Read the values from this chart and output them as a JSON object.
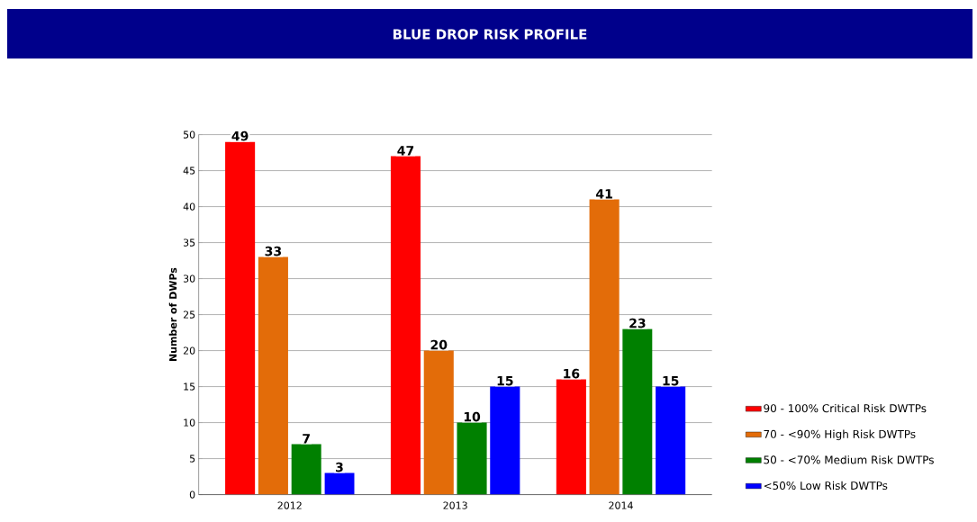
{
  "chart_data": {
    "type": "bar",
    "title": "BLUE DROP RISK PROFILE",
    "ylabel": "Number of DWPs",
    "categories": [
      "2012",
      "2013",
      "2014"
    ],
    "series": [
      {
        "name": "90 - 100% Critical Risk DWTPs",
        "color": "#ff0000",
        "values": [
          49,
          47,
          16
        ]
      },
      {
        "name": "70 - <90% High Risk DWTPs",
        "color": "#e36c09",
        "values": [
          33,
          20,
          41
        ]
      },
      {
        "name": "50 - <70% Medium Risk DWTPs",
        "color": "#008000",
        "values": [
          7,
          10,
          23
        ]
      },
      {
        "name": "<50% Low Risk DWTPs",
        "color": "#0000ff",
        "values": [
          3,
          15,
          15
        ]
      }
    ],
    "ylim": [
      0,
      50
    ],
    "yticks": [
      0,
      5,
      10,
      15,
      20,
      25,
      30,
      35,
      40,
      45,
      50
    ],
    "grid": "y",
    "legend": "right",
    "data_labels": true
  }
}
